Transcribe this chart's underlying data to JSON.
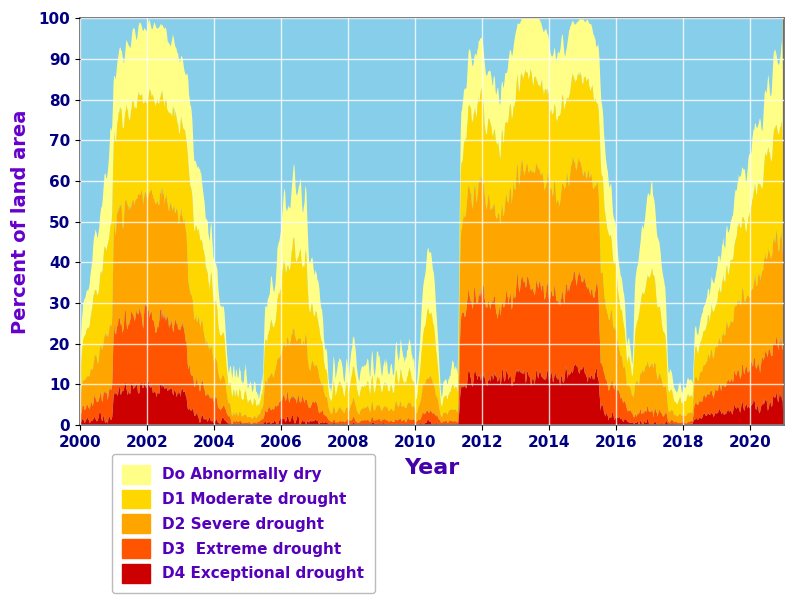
{
  "xlabel": "Year",
  "ylabel": "Percent of land area",
  "bg_color": "#87CEEB",
  "colors": {
    "D0": "#FFFF88",
    "D1": "#FFD700",
    "D2": "#FFA500",
    "D3": "#FF5500",
    "D4": "#CC0000"
  },
  "legend_labels": [
    "Do Abnormally dry",
    "D1 Moderate drought",
    "D2 Severe drought",
    "D3  Extreme drought",
    "D4 Exceptional drought"
  ],
  "ylim": [
    0,
    100
  ],
  "xlim": [
    2000.0,
    2021.0
  ],
  "xticks": [
    2000,
    2002,
    2004,
    2006,
    2008,
    2010,
    2012,
    2014,
    2016,
    2018,
    2020
  ],
  "yticks": [
    0,
    10,
    20,
    30,
    40,
    50,
    60,
    70,
    80,
    90,
    100
  ],
  "ylabel_color": "#6600CC",
  "xlabel_color": "#4400AA",
  "tick_color": "#000080",
  "label_fontsize": 14,
  "tick_fontsize": 11
}
